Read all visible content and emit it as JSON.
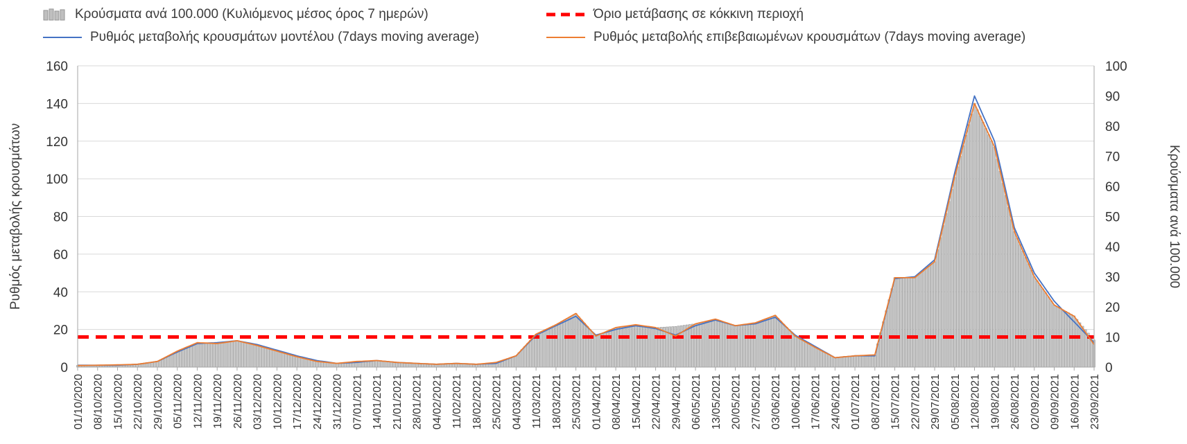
{
  "legend": {
    "bar_label": "Κρούσματα ανά 100.000 (Κυλιόμενος μέσος όρος 7 ημερών)",
    "threshold_label": "Όριο μετάβασης σε κόκκινη περιοχή",
    "model_label": "Ρυθμός μεταβολής κρουσμάτων μοντέλου (7days moving average)",
    "confirmed_label": "Ρυθμός μεταβολής επιβεβαιωμένων κρουσμάτων (7days moving average)"
  },
  "colors": {
    "bar_fill": "#c9c9c9",
    "bar_stroke": "#969696",
    "model_line": "#4472c4",
    "confirmed_line": "#ed7d31",
    "threshold": "#ff0000",
    "grid": "#d9d9d9",
    "axis": "#a6a6a6"
  },
  "chart_data": {
    "type": "combo",
    "title": "",
    "grid": true,
    "legend_position": "top",
    "categories": [
      "01/10/2020",
      "08/10/2020",
      "15/10/2020",
      "22/10/2020",
      "29/10/2020",
      "05/11/2020",
      "12/11/2020",
      "19/11/2020",
      "26/11/2020",
      "03/12/2020",
      "10/12/2020",
      "17/12/2020",
      "24/12/2020",
      "31/12/2020",
      "07/01/2021",
      "14/01/2021",
      "21/01/2021",
      "28/01/2021",
      "04/02/2021",
      "11/02/2021",
      "18/02/2021",
      "25/02/2021",
      "04/03/2021",
      "11/03/2021",
      "18/03/2021",
      "25/03/2021",
      "01/04/2021",
      "08/04/2021",
      "15/04/2021",
      "22/04/2021",
      "29/04/2021",
      "06/05/2021",
      "13/05/2021",
      "20/05/2021",
      "27/05/2021",
      "03/06/2021",
      "10/06/2021",
      "17/06/2021",
      "24/06/2021",
      "01/07/2021",
      "08/07/2021",
      "15/07/2021",
      "22/07/2021",
      "29/07/2021",
      "05/08/2021",
      "12/08/2021",
      "19/08/2021",
      "26/08/2021",
      "02/09/2021",
      "09/09/2021",
      "16/09/2021",
      "23/09/2021"
    ],
    "series": [
      {
        "name": "Κρούσματα ανά 100.000 (Κυλιόμενος μέσος όρος 7 ημερών)",
        "type": "bar",
        "axis": "right",
        "color": "#c9c9c9",
        "values": [
          0.6,
          0.7,
          0.8,
          1,
          1.9,
          5.3,
          8.1,
          7.9,
          8.8,
          7.2,
          5.3,
          3.5,
          1.9,
          1.3,
          1.9,
          2.2,
          1.6,
          1.3,
          1,
          1.3,
          1,
          1.6,
          3.8,
          10.9,
          14.1,
          17.8,
          10.3,
          13.1,
          14.1,
          13.1,
          13.5,
          14.4,
          15.9,
          13.8,
          14.7,
          17.2,
          10.3,
          6.6,
          3.2,
          3.8,
          4.1,
          29.7,
          29.7,
          35,
          63,
          87.5,
          73,
          45,
          30,
          20.6,
          17,
          9
        ]
      },
      {
        "name": "Ρυθμός μεταβολής κρουσμάτων μοντέλου (7days moving average)",
        "type": "line",
        "axis": "left",
        "color": "#4472c4",
        "values": [
          1,
          1,
          1,
          1.5,
          3,
          8,
          12.5,
          13,
          14,
          12,
          9,
          6,
          3.5,
          2,
          2.5,
          3.5,
          2.5,
          2,
          1.5,
          2,
          1.5,
          2,
          6,
          17,
          22,
          27,
          17,
          20,
          22,
          20.5,
          17,
          22,
          25,
          22,
          23,
          26.5,
          17,
          11,
          5,
          6,
          6,
          47,
          48,
          57,
          103,
          144,
          120,
          74,
          50,
          35,
          24,
          13
        ]
      },
      {
        "name": "Ρυθμός μεταβολής επιβεβαιωμένων κρουσμάτων (7days moving average)",
        "type": "line",
        "axis": "left",
        "color": "#ed7d31",
        "values": [
          0.8,
          1,
          1.2,
          1.5,
          3,
          8.5,
          13,
          12.5,
          14,
          11.5,
          8.5,
          5.5,
          3,
          2,
          3,
          3.5,
          2.5,
          2,
          1.5,
          2,
          1.5,
          2.5,
          6,
          17.5,
          22.5,
          28.5,
          16.5,
          21,
          22.5,
          21,
          16.5,
          23,
          25.5,
          22,
          23.5,
          27.5,
          16.5,
          10.5,
          5,
          6,
          6.5,
          47.5,
          47.5,
          56,
          101,
          140,
          117,
          72,
          48,
          33,
          27,
          12
        ]
      }
    ],
    "threshold": {
      "name": "Όριο μετάβασης σε κόκκινη περιοχή",
      "axis": "left",
      "value": 16,
      "right_axis_value": 10,
      "color": "#ff0000",
      "style": "dashed"
    },
    "left_axis": {
      "label": "Ρυθμός μεταβολής κρουσμάτων",
      "min": 0,
      "max": 160,
      "step": 20,
      "ticks": [
        0,
        20,
        40,
        60,
        80,
        100,
        120,
        140,
        160
      ]
    },
    "right_axis": {
      "label": "Κρούσματα ανά 100.000",
      "min": 0,
      "max": 100,
      "step": 10,
      "ticks": [
        0,
        10,
        20,
        30,
        40,
        50,
        60,
        70,
        80,
        90,
        100
      ]
    },
    "sampling_note": "weekly tick labels; bars rendered daily"
  }
}
